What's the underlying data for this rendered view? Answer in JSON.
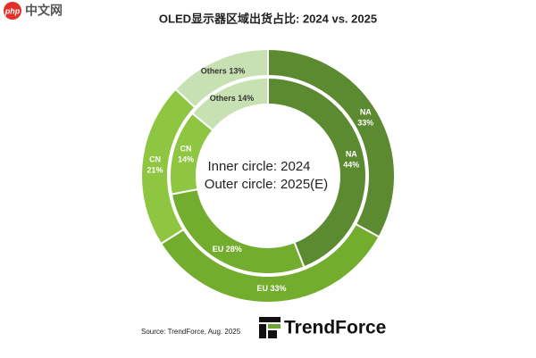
{
  "chart_data": {
    "type": "donut",
    "title": "OLED显示器区域出货占比: 2024 vs. 2025",
    "categories": [
      "NA",
      "EU",
      "CN",
      "Others"
    ],
    "colors": [
      "#5b8a31",
      "#73ad2d",
      "#8fc641",
      "#c8e1b2"
    ],
    "series": [
      {
        "name": "Inner circle: 2024",
        "values": [
          44,
          28,
          14,
          14
        ],
        "value_labels": [
          "44%",
          "28%",
          "14%",
          "14%"
        ]
      },
      {
        "name": "Outer circle: 2025(E)",
        "values": [
          33,
          33,
          21,
          13
        ],
        "value_labels": [
          "33%",
          "33%",
          "21%",
          "13%"
        ]
      }
    ],
    "source": "Source: TrendForce, Aug. 2025"
  },
  "page": {
    "watermark_logo": "php",
    "watermark_text": "中文网",
    "brand": "TrendForce"
  }
}
